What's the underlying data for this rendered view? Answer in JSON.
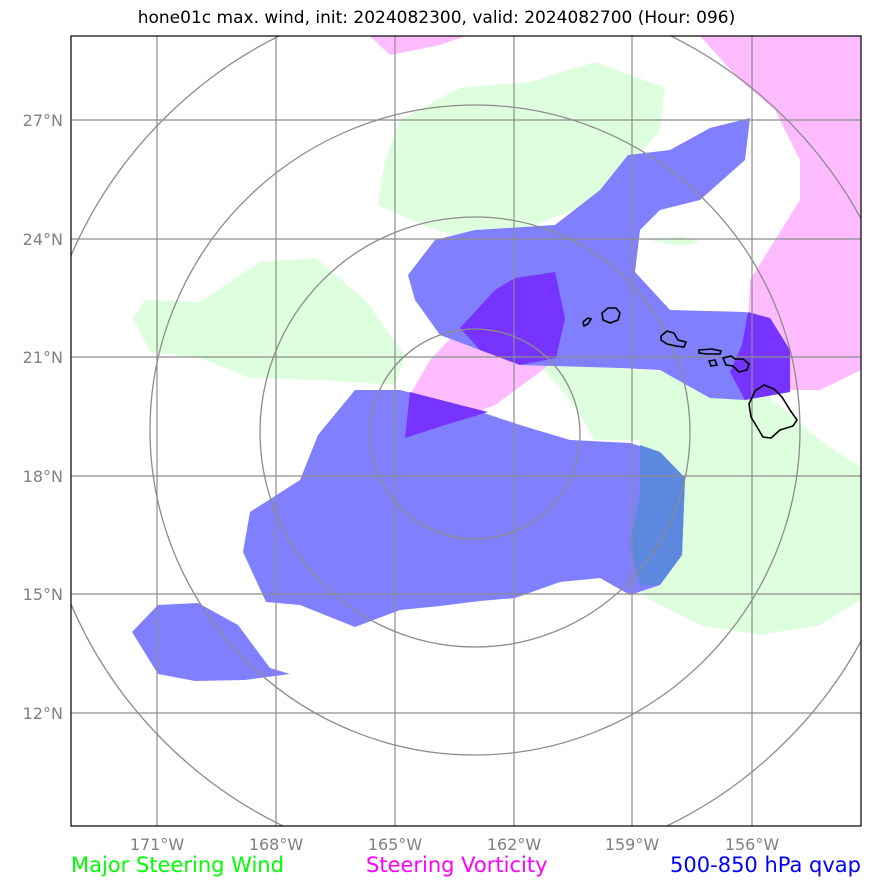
{
  "title": "hone01c max. wind, init: 2024082300, valid: 2024082700 (Hour: 096)",
  "map": {
    "region": "Hawaiian Islands, central Pacific",
    "lon_labels": [
      "171°W",
      "168°W",
      "165°W",
      "162°W",
      "159°W",
      "156°W"
    ],
    "lat_labels": [
      "27°N",
      "24°N",
      "21°N",
      "18°N",
      "15°N",
      "12°N"
    ],
    "range_rings": 4,
    "colors": {
      "steering_wind": "#ddffdd",
      "steering_vorticity": "#ffbbff",
      "qvap": "#8080ff",
      "qvap_overlap_vorticity": "#7733ff",
      "qvap_overlap_wind": "#5d88e0",
      "grid": "#8c8c8c",
      "coastline": "#000000"
    }
  },
  "legend": {
    "wind": "Major Steering Wind",
    "vorticity": "Steering Vorticity",
    "qvap": "500-850 hPa qvap"
  }
}
